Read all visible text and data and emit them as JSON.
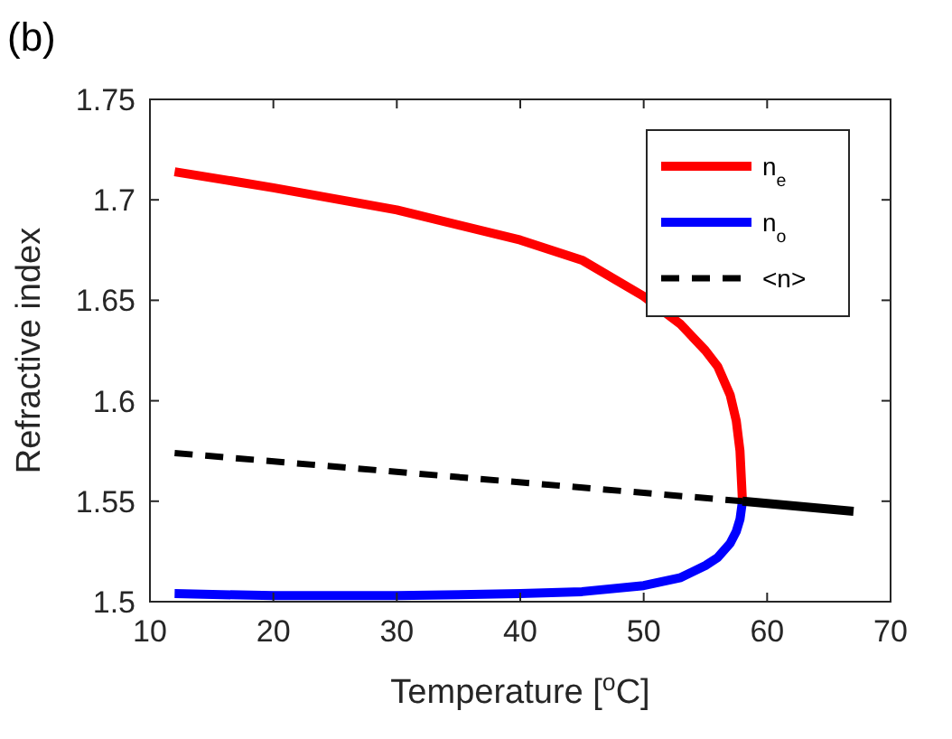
{
  "chart_data": {
    "type": "line",
    "title": "(b)",
    "xlabel": "Temperature [$^{o}$C]",
    "ylabel": "Refractive index",
    "xlim": [
      10,
      70
    ],
    "xticks": [
      10,
      20,
      30,
      40,
      50,
      60,
      70
    ],
    "ylim": [
      1.5,
      1.75
    ],
    "yticks": [
      1.5,
      1.55,
      1.6,
      1.65,
      1.7,
      1.75
    ],
    "legend": "top right",
    "grid": false,
    "series": [
      {
        "name": "n$_{e}$",
        "color": "#ff0000",
        "line_style": "solid",
        "x": [
          12,
          20,
          30,
          40,
          45,
          50,
          53,
          55,
          56,
          57,
          57.5,
          57.8,
          58
        ],
        "values": [
          1.714,
          1.706,
          1.695,
          1.68,
          1.67,
          1.652,
          1.638,
          1.625,
          1.617,
          1.603,
          1.59,
          1.575,
          1.55
        ]
      },
      {
        "name": "n$_{o}$",
        "color": "#0000ff",
        "line_style": "solid",
        "x": [
          12,
          20,
          30,
          40,
          45,
          50,
          53,
          55,
          56,
          57,
          57.5,
          57.8,
          58
        ],
        "values": [
          1.504,
          1.503,
          1.503,
          1.504,
          1.505,
          1.508,
          1.512,
          1.518,
          1.522,
          1.529,
          1.535,
          1.541,
          1.55
        ]
      },
      {
        "name": "<n>",
        "color": "#000000",
        "line_style": "dashed",
        "x": [
          12,
          58
        ],
        "values": [
          1.574,
          1.55
        ]
      },
      {
        "color": "#000000",
        "line_style": "solid",
        "x": [
          58,
          67
        ],
        "values": [
          1.55,
          1.545
        ]
      }
    ]
  }
}
